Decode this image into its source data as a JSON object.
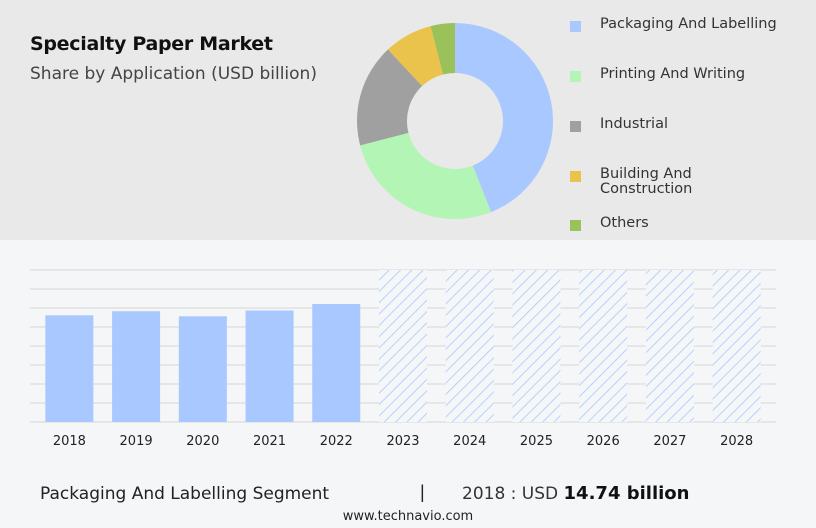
{
  "header": {
    "title": "Specialty Paper Market",
    "subtitle": "Share by Application (USD billion)"
  },
  "chart_data": [
    {
      "type": "pie",
      "variant": "donut",
      "categories": [
        "Packaging And Labelling",
        "Printing And Writing",
        "Industrial",
        "Building And Construction",
        "Others"
      ],
      "values": [
        44,
        27,
        17,
        8,
        4
      ],
      "colors": [
        "#a8c8ff",
        "#b3f5b5",
        "#a0a0a0",
        "#e9c34c",
        "#9bc15b"
      ],
      "legend_position": "right"
    },
    {
      "type": "bar",
      "categories": [
        "2018",
        "2019",
        "2020",
        "2021",
        "2022",
        "2023",
        "2024",
        "2025",
        "2026",
        "2027",
        "2028"
      ],
      "values": [
        14.74,
        15.3,
        14.6,
        15.4,
        16.3,
        null,
        null,
        null,
        null,
        null,
        null
      ],
      "forecast_from": "2023",
      "ylim": [
        0,
        21
      ],
      "grid": true,
      "bar_color": "#a8c8ff",
      "forecast_style": "hatched"
    }
  ],
  "footer": {
    "segment_label": "Packaging And Labelling Segment",
    "separator": "|",
    "year_prefix": "2018 : USD",
    "value_text": "14.74 billion",
    "website": "www.technavio.com"
  }
}
